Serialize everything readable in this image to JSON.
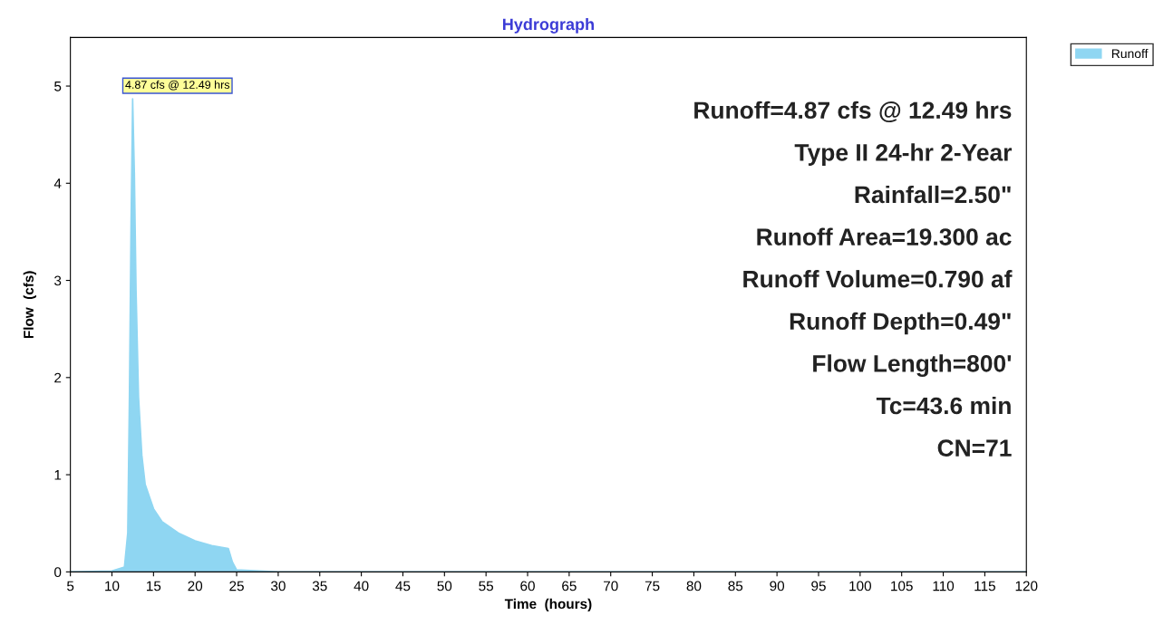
{
  "chart_data": {
    "type": "area",
    "title": "Hydrograph",
    "xlabel": "Time  (hours)",
    "ylabel": "Flow  (cfs)",
    "x": [
      5,
      10,
      11.5,
      11.9,
      12.1,
      12.3,
      12.49,
      12.7,
      12.9,
      13.2,
      13.6,
      14,
      15,
      16,
      18,
      20,
      22,
      24,
      24.5,
      25,
      30,
      60,
      120
    ],
    "series": [
      {
        "name": "Runoff",
        "color": "#8fd6f2",
        "values": [
          0,
          0.01,
          0.05,
          0.4,
          1.8,
          3.6,
          4.87,
          4.1,
          2.9,
          1.8,
          1.2,
          0.9,
          0.65,
          0.52,
          0.4,
          0.32,
          0.27,
          0.24,
          0.1,
          0.02,
          0,
          0,
          0
        ]
      }
    ],
    "xlim": [
      5,
      120
    ],
    "xticks": [
      5,
      10,
      15,
      20,
      25,
      30,
      35,
      40,
      45,
      50,
      55,
      60,
      65,
      70,
      75,
      80,
      85,
      90,
      95,
      100,
      105,
      110,
      115,
      120
    ],
    "ylim": [
      0,
      5.5
    ],
    "yticks": [
      0,
      1,
      2,
      3,
      4,
      5
    ],
    "grid": false,
    "legend": "top right",
    "annotations": [
      {
        "text": "4.87 cfs @ 12.49 hrs",
        "x": 12.49,
        "y": 4.87
      },
      "Runoff=4.87 cfs @ 12.49 hrs",
      "Type II 24-hr 2-Year",
      "Rainfall=2.50\"",
      "Runoff Area=19.300 ac",
      "Runoff Volume=0.790 af",
      "Runoff Depth=0.49\"",
      "Flow Length=800'",
      "Tc=43.6 min",
      "CN=71"
    ]
  }
}
